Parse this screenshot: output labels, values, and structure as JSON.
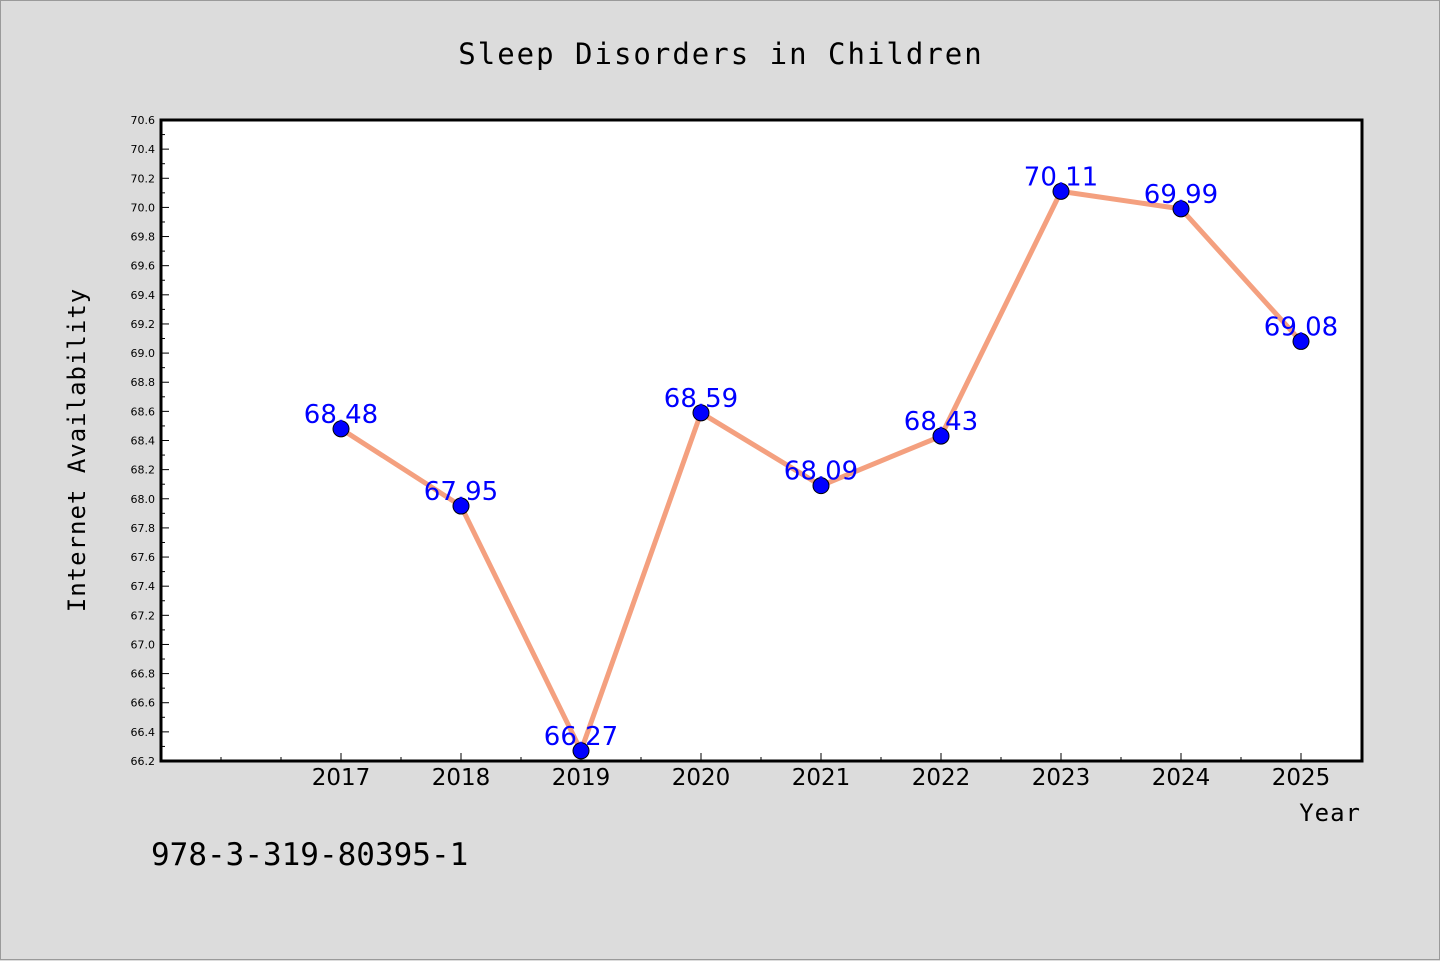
{
  "chart_data": {
    "type": "line",
    "title": "Sleep Disorders in Children",
    "xlabel": "Year",
    "ylabel": "Internet Availability",
    "categories": [
      "2017",
      "2018",
      "2019",
      "2020",
      "2021",
      "2022",
      "2023",
      "2024",
      "2025"
    ],
    "series": [
      {
        "values": [
          68.48,
          67.95,
          66.27,
          68.59,
          68.09,
          68.43,
          70.11,
          69.99,
          69.08
        ],
        "labels": [
          "68.48",
          "67.95",
          "66.27",
          "68.59",
          "68.09",
          "68.43",
          "70.11",
          "69.99",
          "69.08"
        ],
        "line_color": "#f4a07f",
        "marker_color": "#0000ff",
        "label_color": "#0000ff"
      }
    ],
    "ylim": [
      66.2,
      70.6
    ],
    "yticks": [
      "66.2",
      "66.4",
      "66.6",
      "66.8",
      "67.0",
      "67.2",
      "67.4",
      "67.6",
      "67.8",
      "68.0",
      "68.2",
      "68.4",
      "68.6",
      "68.8",
      "69.0",
      "69.2",
      "69.4",
      "69.6",
      "69.8",
      "70.0",
      "70.2",
      "70.4",
      "70.6"
    ],
    "grid": false,
    "legend": "none"
  },
  "footer_text": "978-3-319-80395-1",
  "colors": {
    "background": "#dcdcdc",
    "plot_background": "#ffffff",
    "axis": "#000000"
  }
}
